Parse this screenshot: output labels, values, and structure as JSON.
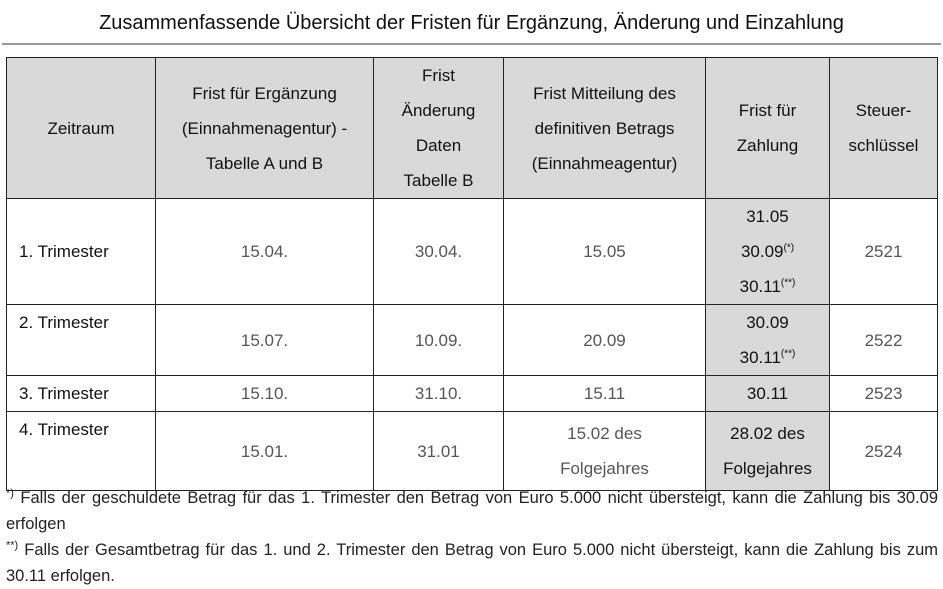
{
  "title": "Zusammenfassende Übersicht der Fristen für Ergänzung, Änderung und Einzahlung",
  "table": {
    "header": [
      [
        "Zeitraum"
      ],
      [
        "Frist für Ergänzung",
        "(Einnahmenagentur) -",
        "Tabelle A und B"
      ],
      [
        "Frist",
        "Änderung",
        "Daten",
        "Tabelle B"
      ],
      [
        "Frist Mitteilung des",
        "definitiven Betrags",
        "(Einnahmeagentur)"
      ],
      [
        "Frist für",
        "Zahlung"
      ],
      [
        "Steuer-",
        "schlüssel"
      ]
    ],
    "rows": [
      [
        [
          "1. Trimester"
        ],
        [
          "15.04."
        ],
        [
          "30.04."
        ],
        [
          "15.05"
        ],
        [
          "31.05",
          {
            "text": "30.09",
            "sup": "(*)"
          },
          {
            "text": "30.11",
            "sup": "(**)"
          }
        ],
        [
          "2521"
        ]
      ],
      [
        [
          "2. Trimester"
        ],
        [
          "15.07."
        ],
        [
          "10.09."
        ],
        [
          "20.09"
        ],
        [
          "30.09",
          {
            "text": "30.11",
            "sup": "(**)"
          }
        ],
        [
          "2522"
        ]
      ],
      [
        [
          "3. Trimester"
        ],
        [
          "15.10."
        ],
        [
          "31.10."
        ],
        [
          "15.11"
        ],
        [
          "30.11"
        ],
        [
          "2523"
        ]
      ],
      [
        [
          "4. Trimester"
        ],
        [
          "15.01."
        ],
        [
          "31.01"
        ],
        [
          "15.02 des",
          "Folgejahres"
        ],
        [
          "28.02 des",
          "Folgejahres"
        ],
        [
          "2524"
        ]
      ]
    ]
  },
  "footnotes": [
    {
      "marker": "*)",
      "text": "Falls der geschuldete Betrag für das 1. Trimester den Betrag von Euro 5.000 nicht übersteigt, kann die Zahlung bis 30.09 erfolgen"
    },
    {
      "marker": "**)",
      "text": "Falls der Gesamtbetrag für das 1. und 2. Trimester den Betrag von Euro 5.000 nicht übersteigt, kann die Zahlung bis zum 30.11 erfolgen."
    }
  ]
}
